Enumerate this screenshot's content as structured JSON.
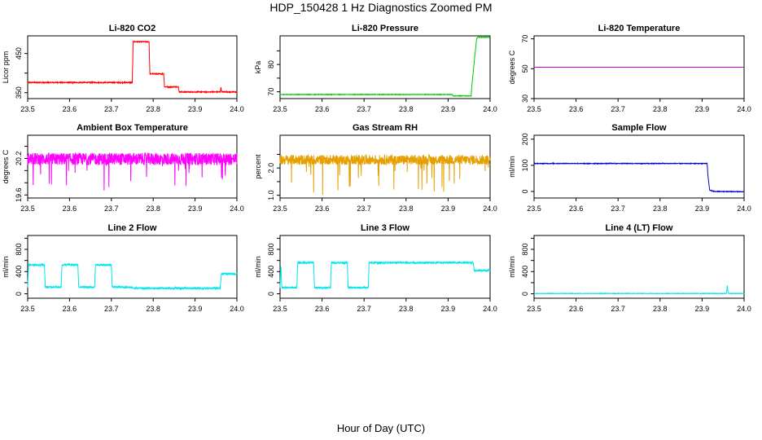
{
  "title": "HDP_150428  1 Hz Diagnostics Zoomed PM",
  "x_axis_title": "Hour of Day (UTC)",
  "chart_data": [
    {
      "type": "line",
      "title": "Li-820 CO2",
      "ylabel": "Licor ppm",
      "xlim": [
        23.5,
        24.0
      ],
      "ylim": [
        335,
        495
      ],
      "x_ticks": [
        "23.5",
        "23.6",
        "23.7",
        "23.8",
        "23.9",
        "24.0"
      ],
      "y_ticks": [
        350,
        400,
        450
      ],
      "y_tick_labels": [
        "350",
        "",
        "450"
      ],
      "color": "#ff0000",
      "noise": 1.2,
      "series": [
        {
          "x": [
            23.5,
            23.75,
            23.752,
            23.79,
            23.792,
            23.825,
            23.827,
            23.86,
            23.862,
            23.96,
            23.962,
            23.963,
            23.965,
            24.0
          ],
          "y": [
            376,
            376,
            480,
            480,
            398,
            398,
            365,
            365,
            352,
            352,
            364,
            355,
            352,
            352
          ]
        }
      ]
    },
    {
      "type": "line",
      "title": "Li-820 Pressure",
      "ylabel": "kPa",
      "xlim": [
        23.5,
        24.0
      ],
      "ylim": [
        67.5,
        90.5
      ],
      "x_ticks": [
        "23.5",
        "23.6",
        "23.7",
        "23.8",
        "23.9",
        "24.0"
      ],
      "y_ticks": [
        70,
        75,
        80,
        85
      ],
      "y_tick_labels": [
        "70",
        "",
        "80",
        ""
      ],
      "color": "#00cc00",
      "noise": 0.1,
      "series": [
        {
          "x": [
            23.5,
            23.91,
            23.912,
            23.955,
            23.957,
            23.968,
            23.97,
            24.0
          ],
          "y": [
            69,
            69,
            68.5,
            68.5,
            73,
            89.5,
            90,
            90
          ]
        }
      ]
    },
    {
      "type": "line",
      "title": "Li-820 Temperature",
      "ylabel": "degrees C",
      "xlim": [
        23.5,
        24.0
      ],
      "ylim": [
        30,
        72
      ],
      "x_ticks": [
        "23.5",
        "23.6",
        "23.7",
        "23.8",
        "23.9",
        "24.0"
      ],
      "y_ticks": [
        30,
        50,
        70
      ],
      "y_tick_labels": [
        "30",
        "50",
        "70"
      ],
      "color": "#cc00cc",
      "noise": 0,
      "series": [
        {
          "x": [
            23.5,
            24.0
          ],
          "y": [
            51,
            51
          ]
        }
      ]
    },
    {
      "type": "line",
      "title": "Ambient Box Temperature",
      "ylabel": "degrees C",
      "xlim": [
        23.5,
        24.0
      ],
      "ylim": [
        19.55,
        20.58
      ],
      "x_ticks": [
        "23.5",
        "23.6",
        "23.7",
        "23.8",
        "23.9",
        "24.0"
      ],
      "y_ticks": [
        19.6,
        19.8,
        20.0,
        20.2,
        20.4
      ],
      "y_tick_labels": [
        "19.6",
        "",
        "",
        "20.2",
        ""
      ],
      "color": "#ff00ff",
      "noise": 0.1,
      "spikes": 0.16,
      "series": [
        {
          "x": [
            23.5,
            24.0
          ],
          "y": [
            20.19,
            20.19
          ]
        }
      ]
    },
    {
      "type": "line",
      "title": "Gas Stream RH",
      "ylabel": "percent",
      "xlim": [
        23.5,
        24.0
      ],
      "ylim": [
        0.9,
        3.2
      ],
      "x_ticks": [
        "23.5",
        "23.6",
        "23.7",
        "23.8",
        "23.9",
        "24.0"
      ],
      "y_ticks": [
        1.0,
        1.5,
        2.0,
        2.5
      ],
      "y_tick_labels": [
        "1.0",
        "",
        "2.0",
        ""
      ],
      "color": "#e69f00",
      "noise": 0.18,
      "spikes": 0.4,
      "series": [
        {
          "x": [
            23.5,
            24.0
          ],
          "y": [
            2.3,
            2.3
          ]
        }
      ]
    },
    {
      "type": "line",
      "title": "Sample Flow",
      "ylabel": "ml/min",
      "xlim": [
        23.5,
        24.0
      ],
      "ylim": [
        -25,
        215
      ],
      "x_ticks": [
        "23.5",
        "23.6",
        "23.7",
        "23.8",
        "23.9",
        "24.0"
      ],
      "y_ticks": [
        0,
        100,
        200
      ],
      "y_tick_labels": [
        "0",
        "100",
        "200"
      ],
      "color": "#0000cc",
      "noise": 1.2,
      "series": [
        {
          "x": [
            23.5,
            23.912,
            23.914,
            23.918,
            23.925,
            23.93,
            24.0
          ],
          "y": [
            107,
            107,
            60,
            5,
            2,
            0,
            -1
          ]
        }
      ]
    },
    {
      "type": "line",
      "title": "Line 2 Flow",
      "ylabel": "ml/min",
      "xlim": [
        23.5,
        24.0
      ],
      "ylim": [
        -80,
        1050
      ],
      "x_ticks": [
        "23.5",
        "23.6",
        "23.7",
        "23.8",
        "23.9",
        "24.0"
      ],
      "y_ticks": [
        0,
        200,
        400,
        600,
        800,
        1000
      ],
      "y_tick_labels": [
        "0",
        "",
        "400",
        "",
        "800",
        ""
      ],
      "color": "#00e5ee",
      "noise": 15,
      "series": [
        {
          "x": [
            23.5,
            23.502,
            23.54,
            23.542,
            23.58,
            23.582,
            23.62,
            23.622,
            23.66,
            23.662,
            23.7,
            23.702,
            23.75,
            23.752,
            23.96,
            23.963,
            24.0
          ],
          "y": [
            120,
            520,
            520,
            120,
            120,
            520,
            520,
            120,
            120,
            520,
            520,
            120,
            120,
            100,
            100,
            360,
            360
          ]
        }
      ]
    },
    {
      "type": "line",
      "title": "Line 3 Flow",
      "ylabel": "ml/min",
      "xlim": [
        23.5,
        24.0
      ],
      "ylim": [
        -80,
        1050
      ],
      "x_ticks": [
        "23.5",
        "23.6",
        "23.7",
        "23.8",
        "23.9",
        "24.0"
      ],
      "y_ticks": [
        0,
        200,
        400,
        600,
        800,
        1000
      ],
      "y_tick_labels": [
        "0",
        "",
        "400",
        "",
        "800",
        ""
      ],
      "color": "#00e5ee",
      "noise": 15,
      "series": [
        {
          "x": [
            23.5,
            23.502,
            23.504,
            23.54,
            23.542,
            23.58,
            23.582,
            23.62,
            23.622,
            23.66,
            23.662,
            23.7,
            23.702,
            23.71,
            23.712,
            23.96,
            23.962,
            24.0
          ],
          "y": [
            110,
            520,
            110,
            110,
            560,
            560,
            110,
            110,
            560,
            560,
            110,
            110,
            110,
            110,
            560,
            560,
            420,
            420
          ]
        }
      ]
    },
    {
      "type": "line",
      "title": "Line 4 (LT) Flow",
      "ylabel": "ml/min",
      "xlim": [
        23.5,
        24.0
      ],
      "ylim": [
        -80,
        1050
      ],
      "x_ticks": [
        "23.5",
        "23.6",
        "23.7",
        "23.8",
        "23.9",
        "24.0"
      ],
      "y_ticks": [
        0,
        200,
        400,
        600,
        800,
        1000
      ],
      "y_tick_labels": [
        "0",
        "",
        "400",
        "",
        "800",
        ""
      ],
      "color": "#00e5ee",
      "noise": 4,
      "series": [
        {
          "x": [
            23.5,
            23.958,
            23.96,
            23.962,
            23.964,
            24.0
          ],
          "y": [
            5,
            5,
            150,
            15,
            5,
            5
          ]
        }
      ]
    }
  ]
}
